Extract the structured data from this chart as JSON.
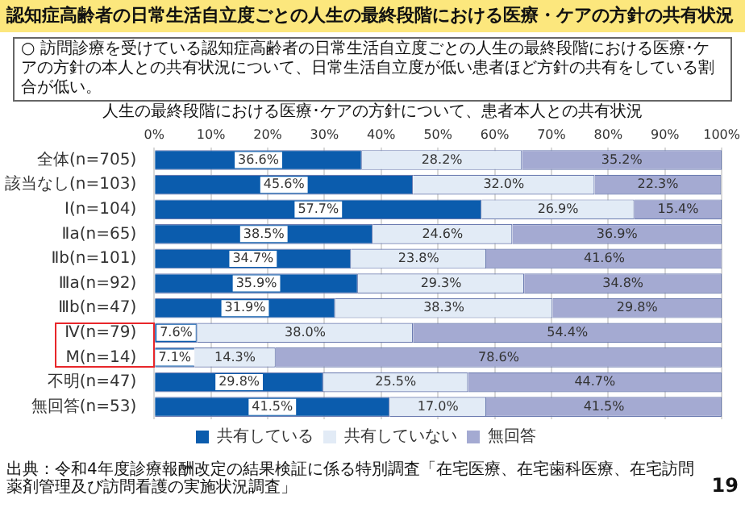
{
  "chart_data": {
    "type": "bar",
    "orientation": "horizontal",
    "stacked": true,
    "title": "認知症高齢者の日常生活自立度ごとの人生の最終段階における医療・ケアの方針の共有状況",
    "subtitle": "○ 訪問診療を受けている認知症高齢者の日常生活自立度ごとの人生の最終段階における医療･ケアの方針の本人との共有状況について、日常生活自立度が低い患者ほど方針の共有をしている割合が低い。",
    "annotations": [
      "人生の最終段階における医療･ケアの方針について、患者本人との共有状況",
      "出典：令和4年度診療報酬改定の結果検証に係る特別調査「在宅医療、在宅歯科医療、在宅訪問薬剤管理及び訪問看護の実施状況調査」",
      "19"
    ],
    "categories": [
      "全体(n=705)",
      "該当なし(n=103)",
      "Ⅰ(n=104)",
      "Ⅱa(n=65)",
      "Ⅱb(n=101)",
      "Ⅲa(n=92)",
      "Ⅲb(n=47)",
      "Ⅳ(n=79)",
      "M(n=14)",
      "不明(n=47)",
      "無回答(n=53)"
    ],
    "series": [
      {
        "name": "共有している",
        "color": "#0b5cad",
        "values": [
          36.6,
          45.6,
          57.7,
          38.5,
          34.7,
          35.9,
          31.9,
          7.6,
          7.1,
          29.8,
          41.5
        ],
        "value_labels": [
          "36.6%",
          "45.6%",
          "57.7%",
          "38.5%",
          "34.7%",
          "35.9%",
          "31.9%",
          "7.6%",
          "7.1%",
          "29.8%",
          "41.5%"
        ]
      },
      {
        "name": "共有していない",
        "color": "#e2ebf6",
        "values": [
          28.2,
          32.0,
          26.9,
          24.6,
          23.8,
          29.3,
          38.3,
          38.0,
          14.3,
          25.5,
          17.0
        ],
        "value_labels": [
          "28.2%",
          "32.0%",
          "26.9%",
          "24.6%",
          "23.8%",
          "29.3%",
          "38.3%",
          "38.0%",
          "14.3%",
          "25.5%",
          "17.0%"
        ]
      },
      {
        "name": "無回答",
        "color": "#a4aad2",
        "values": [
          35.2,
          22.3,
          15.4,
          36.9,
          41.6,
          34.8,
          29.8,
          54.4,
          78.6,
          44.7,
          41.5
        ],
        "value_labels": [
          "35.2%",
          "22.3%",
          "15.4%",
          "36.9%",
          "41.6%",
          "34.8%",
          "29.8%",
          "54.4%",
          "78.6%",
          "44.7%",
          "41.5%"
        ]
      }
    ],
    "xlim": [
      0,
      100
    ],
    "xticks": [
      {
        "value": 0,
        "label": "0%"
      },
      {
        "value": 10,
        "label": "10%"
      },
      {
        "value": 20,
        "label": "20%"
      },
      {
        "value": 30,
        "label": "30%"
      },
      {
        "value": 40,
        "label": "40%"
      },
      {
        "value": 50,
        "label": "50%"
      },
      {
        "value": 60,
        "label": "60%"
      },
      {
        "value": 70,
        "label": "70%"
      },
      {
        "value": 80,
        "label": "80%"
      },
      {
        "value": 90,
        "label": "90%"
      },
      {
        "value": 100,
        "label": "100%"
      }
    ],
    "grid": "x",
    "legend": "bottom"
  }
}
